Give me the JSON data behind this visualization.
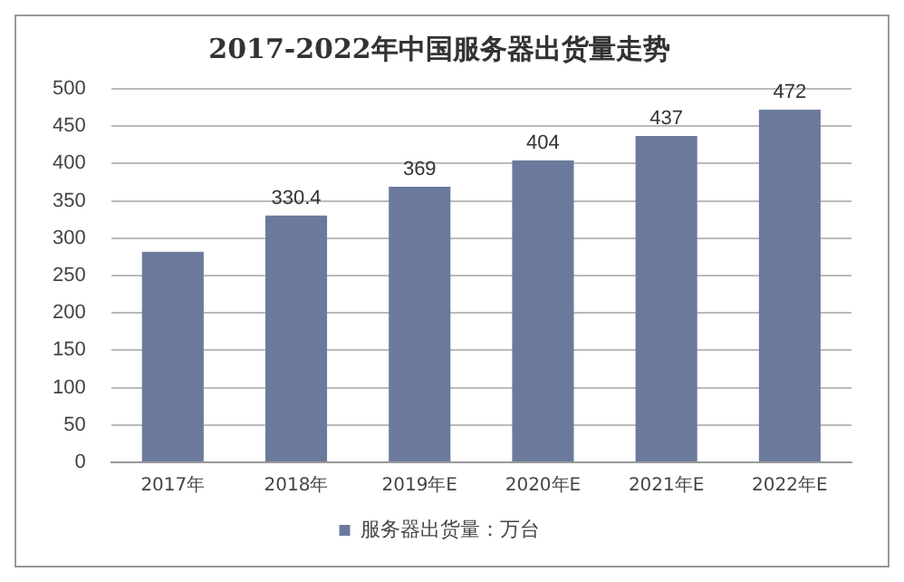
{
  "chart_data": {
    "type": "bar",
    "title": "2017-2022年中国服务器出货量走势",
    "categories": [
      "2017年",
      "2018年",
      "2019年E",
      "2020年E",
      "2021年E",
      "2022年E"
    ],
    "series": [
      {
        "name": "服务器出货量：万台",
        "color": "#6b7a9c",
        "values": [
          282,
          330.4,
          369,
          404,
          437,
          472
        ],
        "value_labels": [
          null,
          "330.4",
          "369",
          "404",
          "437",
          "472"
        ]
      }
    ],
    "ylim": [
      0,
      500
    ],
    "yticks": [
      0,
      50,
      100,
      150,
      200,
      250,
      300,
      350,
      400,
      450,
      500
    ],
    "grid": "y",
    "legend": "bottom"
  }
}
